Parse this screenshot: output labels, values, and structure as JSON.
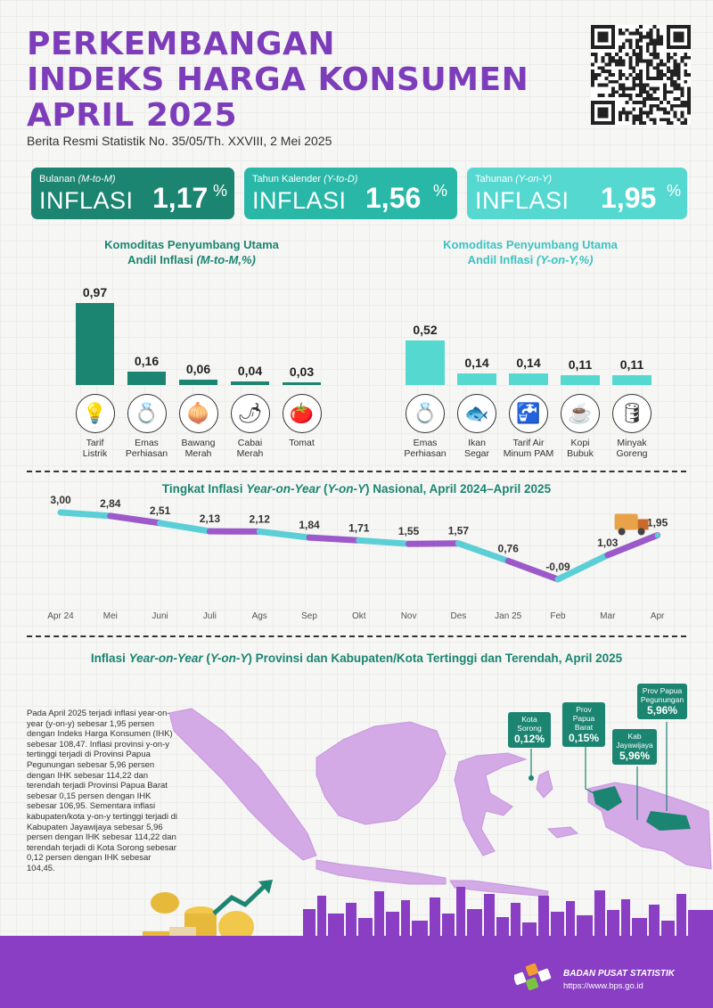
{
  "header": {
    "title_line1": "PERKEMBANGAN",
    "title_line2": "INDEKS HARGA KONSUMEN",
    "title_line3": "APRIL 2025",
    "subtitle": "Berita Resmi Statistik No. 35/05/Th. XXVIII, 2 Mei 2025"
  },
  "cards": [
    {
      "period_pre": "Bulanan ",
      "period_em": "(M-to-M)",
      "label": "INFLASI",
      "value": "1,17",
      "unit": "%"
    },
    {
      "period_pre": "Tahun Kalender ",
      "period_em": "(Y-to-D)",
      "label": "INFLASI",
      "value": "1,56",
      "unit": "%"
    },
    {
      "period_pre": "Tahunan ",
      "period_em": "(Y-on-Y)",
      "label": "INFLASI",
      "value": "1,95",
      "unit": "%"
    }
  ],
  "colors": {
    "purple": "#7d3dbb",
    "green": "#1b8571",
    "teal": "#29b8a8",
    "light_teal": "#55d8d0",
    "line_teal": "#5ccfd6",
    "line_purple": "#9b59c9"
  },
  "chart_data": [
    {
      "type": "bar",
      "title_line1": "Komoditas Penyumbang Utama",
      "title_line2_pre": "Andil Inflasi ",
      "title_line2_em": "(M-to-M,%)",
      "categories": [
        "Tarif Listrik",
        "Emas Perhiasan",
        "Bawang Merah",
        "Cabai Merah",
        "Tomat"
      ],
      "category_lines": [
        [
          "Tarif",
          "Listrik"
        ],
        [
          "Emas",
          "Perhiasan"
        ],
        [
          "Bawang",
          "Merah"
        ],
        [
          "Cabai",
          "Merah"
        ],
        [
          "Tomat"
        ]
      ],
      "values": [
        0.97,
        0.16,
        0.06,
        0.04,
        0.03
      ],
      "value_labels": [
        "0,97",
        "0,16",
        "0,06",
        "0,04",
        "0,03"
      ],
      "icons": [
        "lightbulb-icon",
        "gold-jewelry-icon",
        "onion-icon",
        "chili-icon",
        "tomato-icon"
      ],
      "icon_glyphs": [
        "💡",
        "💍",
        "🧅",
        "🌶",
        "🍅"
      ],
      "color": "#1b8571"
    },
    {
      "type": "bar",
      "title_line1": "Komoditas Penyumbang Utama",
      "title_line2_pre": "Andil Inflasi ",
      "title_line2_em": "(Y-on-Y,%)",
      "categories": [
        "Emas Perhiasan",
        "Ikan Segar",
        "Tarif Air Minum PAM",
        "Kopi Bubuk",
        "Minyak Goreng"
      ],
      "category_lines": [
        [
          "Emas",
          "Perhiasan"
        ],
        [
          "Ikan",
          "Segar"
        ],
        [
          "Tarif Air",
          "Minum PAM"
        ],
        [
          "Kopi",
          "Bubuk"
        ],
        [
          "Minyak",
          "Goreng"
        ]
      ],
      "values": [
        0.52,
        0.14,
        0.14,
        0.11,
        0.11
      ],
      "value_labels": [
        "0,52",
        "0,14",
        "0,14",
        "0,11",
        "0,11"
      ],
      "icons": [
        "gold-jewelry-icon",
        "fish-icon",
        "water-tap-icon",
        "coffee-icon",
        "cooking-oil-icon"
      ],
      "icon_glyphs": [
        "💍",
        "🐟",
        "🚰",
        "☕",
        "🛢"
      ],
      "color": "#55d8d0"
    },
    {
      "type": "line",
      "title_pre": "Tingkat Inflasi ",
      "title_em": "Year-on-Year",
      "title_mid": " (",
      "title_em2": "Y-on-Y",
      "title_post": ") Nasional, April 2024–April 2025",
      "x": [
        "Apr 24",
        "Mei",
        "Juni",
        "Juli",
        "Ags",
        "Sep",
        "Okt",
        "Nov",
        "Des",
        "Jan 25",
        "Feb",
        "Mar",
        "Apr"
      ],
      "y": [
        3.0,
        2.84,
        2.51,
        2.13,
        2.12,
        1.84,
        1.71,
        1.55,
        1.57,
        0.76,
        -0.09,
        1.03,
        1.95
      ],
      "value_labels": [
        "3,00",
        "2,84",
        "2,51",
        "2,13",
        "2,12",
        "1,84",
        "1,71",
        "1,55",
        "1,57",
        "0,76",
        "-0,09",
        "1,03",
        "1,95"
      ]
    }
  ],
  "map_section": {
    "title_pre": "Inflasi ",
    "title_em": "Year-on-Year",
    "title_mid": " (",
    "title_em2": "Y-on-Y",
    "title_post": ") Provinsi dan Kabupaten/Kota Tertinggi dan Terendah, April 2025",
    "note": "Pada April 2025 terjadi inflasi year-on-year (y-on-y) sebesar 1,95 persen dengan Indeks Harga Konsumen (IHK) sebesar 108,47. Inflasi provinsi y-on-y tertinggi terjadi di Provinsi Papua Pegunungan sebesar 5,96 persen dengan IHK sebesar 114,22 dan terendah terjadi Provinsi Papua Barat sebesar 0,15 persen dengan IHK sebesar 106,95. Sementara inflasi kabupaten/kota y-on-y tertinggi terjadi di Kabupaten Jayawijaya sebesar 5,96 persen dengan IHK sebesar 114,22 dan terendah terjadi di Kota Sorong sebesar 0,12 persen dengan IHK sebesar 104,45.",
    "callouts": [
      {
        "name": "Kota Sorong",
        "value": "0,12%"
      },
      {
        "name": "Prov Papua Barat",
        "value": "0,15%"
      },
      {
        "name": "Kab Jayawijaya",
        "value": "5,96%"
      },
      {
        "name": "Prov Papua Pegunungan",
        "value": "5,96%"
      }
    ]
  },
  "footer": {
    "org": "BADAN PUSAT STATISTIK",
    "url": "https://www.bps.go.id"
  }
}
